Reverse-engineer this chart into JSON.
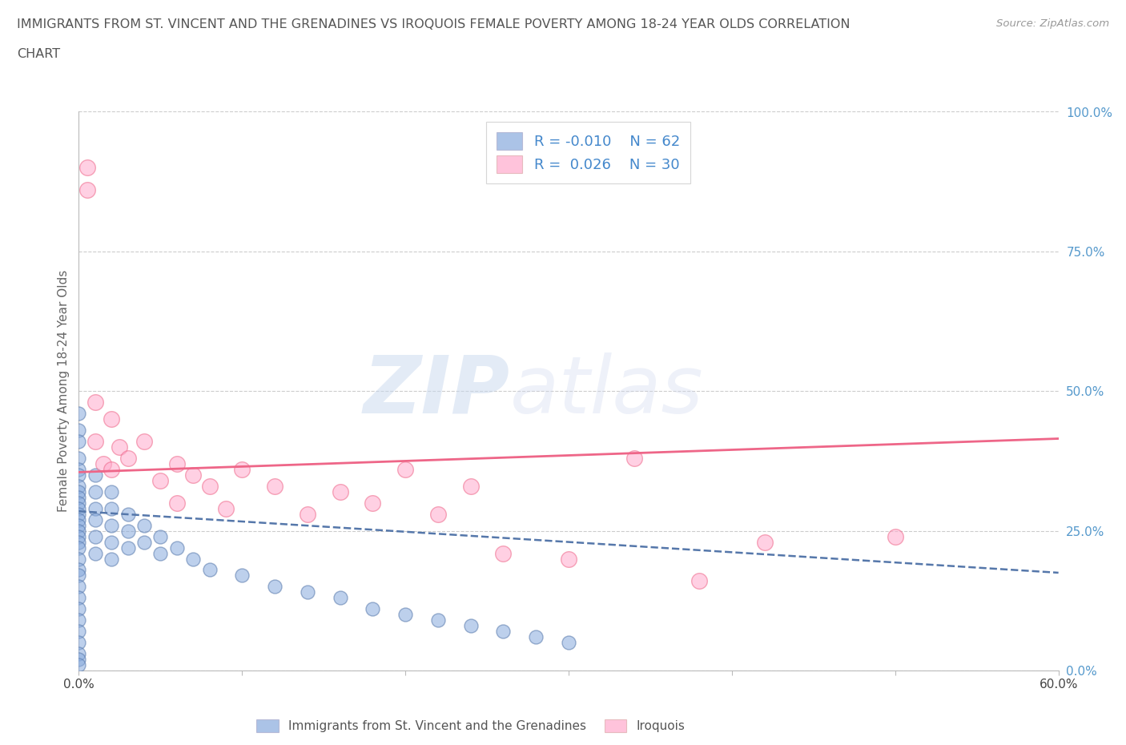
{
  "title_line1": "IMMIGRANTS FROM ST. VINCENT AND THE GRENADINES VS IROQUOIS FEMALE POVERTY AMONG 18-24 YEAR OLDS CORRELATION",
  "title_line2": "CHART",
  "source": "Source: ZipAtlas.com",
  "ylabel": "Female Poverty Among 18-24 Year Olds",
  "xlim": [
    0.0,
    0.6
  ],
  "ylim": [
    0.0,
    1.0
  ],
  "xtick_positions": [
    0.0,
    0.1,
    0.2,
    0.3,
    0.4,
    0.5,
    0.6
  ],
  "xtick_labels": [
    "0.0%",
    "",
    "",
    "",
    "",
    "",
    "60.0%"
  ],
  "ytick_positions_right": [
    0.0,
    0.25,
    0.5,
    0.75,
    1.0
  ],
  "ytick_labels_right": [
    "0.0%",
    "25.0%",
    "50.0%",
    "75.0%",
    "100.0%"
  ],
  "watermark_zip": "ZIP",
  "watermark_atlas": "atlas",
  "legend_blue_label": "Immigrants from St. Vincent and the Grenadines",
  "legend_pink_label": "Iroquois",
  "blue_R": "-0.010",
  "blue_N": "62",
  "pink_R": "0.026",
  "pink_N": "30",
  "blue_color": "#88AADD",
  "pink_color": "#FFAACC",
  "blue_edge_color": "#5577AA",
  "pink_edge_color": "#EE6688",
  "blue_trend_x": [
    0.0,
    0.6
  ],
  "blue_trend_y": [
    0.285,
    0.175
  ],
  "pink_trend_x": [
    0.0,
    0.6
  ],
  "pink_trend_y": [
    0.355,
    0.415
  ],
  "scatter_blue_x": [
    0.0,
    0.0,
    0.0,
    0.0,
    0.0,
    0.0,
    0.0,
    0.0,
    0.0,
    0.0,
    0.0,
    0.0,
    0.0,
    0.0,
    0.0,
    0.0,
    0.0,
    0.0,
    0.0,
    0.0,
    0.0,
    0.0,
    0.0,
    0.0,
    0.0,
    0.0,
    0.0,
    0.0,
    0.0,
    0.0,
    0.01,
    0.01,
    0.01,
    0.01,
    0.01,
    0.01,
    0.02,
    0.02,
    0.02,
    0.02,
    0.02,
    0.03,
    0.03,
    0.03,
    0.04,
    0.04,
    0.05,
    0.05,
    0.06,
    0.07,
    0.08,
    0.1,
    0.12,
    0.14,
    0.16,
    0.18,
    0.2,
    0.22,
    0.24,
    0.26,
    0.28,
    0.3
  ],
  "scatter_blue_y": [
    0.46,
    0.43,
    0.41,
    0.38,
    0.36,
    0.35,
    0.33,
    0.32,
    0.31,
    0.3,
    0.29,
    0.28,
    0.27,
    0.26,
    0.25,
    0.24,
    0.23,
    0.22,
    0.2,
    0.18,
    0.17,
    0.15,
    0.13,
    0.11,
    0.09,
    0.07,
    0.05,
    0.03,
    0.02,
    0.01,
    0.35,
    0.32,
    0.29,
    0.27,
    0.24,
    0.21,
    0.32,
    0.29,
    0.26,
    0.23,
    0.2,
    0.28,
    0.25,
    0.22,
    0.26,
    0.23,
    0.24,
    0.21,
    0.22,
    0.2,
    0.18,
    0.17,
    0.15,
    0.14,
    0.13,
    0.11,
    0.1,
    0.09,
    0.08,
    0.07,
    0.06,
    0.05
  ],
  "scatter_pink_x": [
    0.005,
    0.005,
    0.01,
    0.01,
    0.015,
    0.02,
    0.02,
    0.025,
    0.03,
    0.04,
    0.05,
    0.06,
    0.06,
    0.07,
    0.08,
    0.09,
    0.1,
    0.12,
    0.14,
    0.16,
    0.18,
    0.2,
    0.22,
    0.24,
    0.26,
    0.3,
    0.34,
    0.38,
    0.42,
    0.5
  ],
  "scatter_pink_y": [
    0.86,
    0.9,
    0.48,
    0.41,
    0.37,
    0.45,
    0.36,
    0.4,
    0.38,
    0.41,
    0.34,
    0.37,
    0.3,
    0.35,
    0.33,
    0.29,
    0.36,
    0.33,
    0.28,
    0.32,
    0.3,
    0.36,
    0.28,
    0.33,
    0.21,
    0.2,
    0.38,
    0.16,
    0.23,
    0.24
  ],
  "background_color": "#FFFFFF",
  "grid_color": "#CCCCCC"
}
